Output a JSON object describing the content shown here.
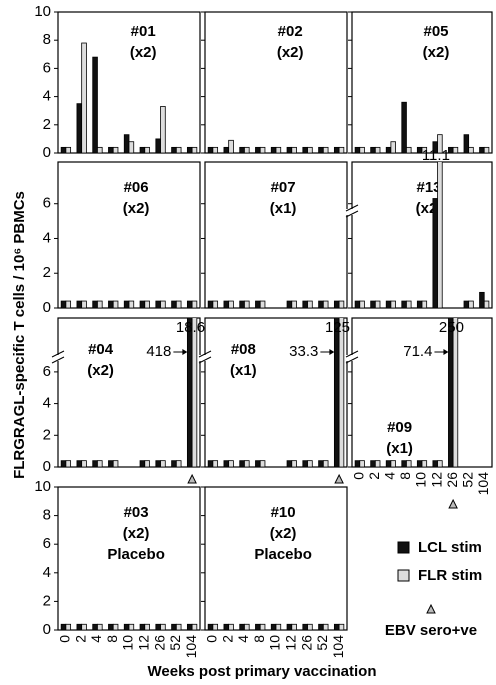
{
  "figure": {
    "y_label": "FLRGRAGL-specific T cells / 10⁶ PBMCs",
    "x_label": "Weeks post primary vaccination",
    "marker_label": "EBV sero+ve"
  },
  "chart_data": [
    {
      "type": "bar",
      "title": "#01",
      "subtitle": "(x2)",
      "categories": [
        0,
        2,
        4,
        8,
        10,
        12,
        26,
        52,
        104
      ],
      "ylim": [
        0,
        10
      ],
      "yticks": [
        0,
        2,
        4,
        6,
        8,
        10
      ],
      "series": [
        {
          "name": "LCL stim",
          "color": "#111111",
          "values": [
            0.4,
            3.5,
            6.8,
            0.4,
            1.3,
            0.4,
            1.0,
            0.4,
            0.4
          ]
        },
        {
          "name": "FLR stim",
          "color": "#dddddd",
          "values": [
            0.4,
            7.8,
            0.4,
            0.4,
            0.8,
            0.4,
            3.3,
            0.4,
            0.4
          ]
        }
      ]
    },
    {
      "type": "bar",
      "title": "#02",
      "subtitle": "(x2)",
      "categories": [
        0,
        2,
        4,
        8,
        10,
        12,
        26,
        52,
        104
      ],
      "ylim": [
        0,
        10
      ],
      "yticks": [
        0,
        2,
        4,
        6,
        8,
        10
      ],
      "series": [
        {
          "name": "LCL stim",
          "color": "#111111",
          "values": [
            0.4,
            0.4,
            0.4,
            0.4,
            0.4,
            0.4,
            0.4,
            0.4,
            0.4
          ]
        },
        {
          "name": "FLR stim",
          "color": "#dddddd",
          "values": [
            0.4,
            0.9,
            0.4,
            0.4,
            0.4,
            0.4,
            0.4,
            0.4,
            0.4
          ]
        }
      ]
    },
    {
      "type": "bar",
      "title": "#05",
      "subtitle": "(x2)",
      "categories": [
        0,
        2,
        4,
        8,
        10,
        12,
        26,
        52,
        104
      ],
      "ylim": [
        0,
        10
      ],
      "yticks": [
        0,
        2,
        4,
        6,
        8,
        10
      ],
      "series": [
        {
          "name": "LCL stim",
          "color": "#111111",
          "values": [
            0.4,
            0.4,
            0.4,
            3.6,
            0.4,
            0.8,
            0.4,
            1.3,
            0.4
          ]
        },
        {
          "name": "FLR stim",
          "color": "#dddddd",
          "values": [
            0.4,
            0.4,
            0.8,
            0.4,
            0.4,
            1.3,
            0.4,
            0.4,
            0.4
          ]
        }
      ]
    },
    {
      "type": "bar",
      "title": "#06",
      "subtitle": "(x2)",
      "categories": [
        0,
        2,
        4,
        8,
        10,
        12,
        26,
        52,
        104
      ],
      "ylim": [
        0,
        8.4
      ],
      "yticks": [
        0,
        2,
        4,
        6
      ],
      "series": [
        {
          "name": "LCL stim",
          "color": "#111111",
          "values": [
            0.4,
            0.4,
            0.4,
            0.4,
            0.4,
            0.4,
            0.4,
            0.4,
            0.4
          ]
        },
        {
          "name": "FLR stim",
          "color": "#dddddd",
          "values": [
            0.4,
            0.4,
            0.4,
            0.4,
            0.4,
            0.4,
            0.4,
            0.4,
            0.4
          ]
        }
      ]
    },
    {
      "type": "bar",
      "title": "#07",
      "subtitle": "(x1)",
      "categories": [
        0,
        2,
        4,
        8,
        10,
        12,
        26,
        52,
        104
      ],
      "ylim": [
        0,
        8.4
      ],
      "yticks": [
        0,
        2,
        4,
        6
      ],
      "series": [
        {
          "name": "LCL stim",
          "color": "#111111",
          "values": [
            0.4,
            0.4,
            0.4,
            0.4,
            null,
            0.4,
            0.4,
            0.4,
            0.4
          ]
        },
        {
          "name": "FLR stim",
          "color": "#dddddd",
          "values": [
            0.4,
            0.4,
            0.4,
            0.4,
            null,
            0.4,
            0.4,
            0.4,
            0.4
          ]
        }
      ]
    },
    {
      "type": "bar",
      "title": "#13",
      "subtitle": "(x2)",
      "categories": [
        0,
        2,
        4,
        8,
        10,
        12,
        26,
        52,
        104
      ],
      "ylim": [
        0,
        8.4
      ],
      "yticks": [
        0,
        2,
        4,
        6
      ],
      "axis_break": true,
      "series": [
        {
          "name": "LCL stim",
          "color": "#111111",
          "values": [
            0.4,
            0.4,
            0.4,
            0.4,
            0.4,
            6.3,
            null,
            0.4,
            0.9
          ]
        },
        {
          "name": "FLR stim",
          "color": "#dddddd",
          "values": [
            0.4,
            0.4,
            0.4,
            0.4,
            0.4,
            11.1,
            null,
            0.4,
            0.4
          ]
        }
      ]
    },
    {
      "type": "bar",
      "title": "#04",
      "subtitle": "(x2)",
      "categories": [
        0,
        2,
        4,
        8,
        10,
        12,
        26,
        52,
        104
      ],
      "ylim": [
        0,
        9.4
      ],
      "yticks": [
        0,
        2,
        4,
        6
      ],
      "axis_break": true,
      "sero_positive_week": 104,
      "series": [
        {
          "name": "LCL stim",
          "color": "#111111",
          "values": [
            0.4,
            0.4,
            0.4,
            0.4,
            null,
            0.4,
            0.4,
            0.4,
            418
          ]
        },
        {
          "name": "FLR stim",
          "color": "#dddddd",
          "values": [
            0.4,
            0.4,
            0.4,
            0.4,
            null,
            0.4,
            0.4,
            0.4,
            18.6
          ]
        }
      ]
    },
    {
      "type": "bar",
      "title": "#08",
      "subtitle": "(x1)",
      "categories": [
        0,
        2,
        4,
        8,
        10,
        12,
        26,
        52,
        104
      ],
      "ylim": [
        0,
        9.4
      ],
      "yticks": [
        0,
        2,
        4,
        6
      ],
      "axis_break": true,
      "sero_positive_week": 104,
      "series": [
        {
          "name": "LCL stim",
          "color": "#111111",
          "values": [
            0.4,
            0.4,
            0.4,
            0.4,
            null,
            0.4,
            0.4,
            0.4,
            33.3
          ]
        },
        {
          "name": "FLR stim",
          "color": "#dddddd",
          "values": [
            0.4,
            0.4,
            0.4,
            0.4,
            null,
            0.4,
            0.4,
            0.4,
            125
          ]
        }
      ]
    },
    {
      "type": "bar",
      "title": "#09",
      "subtitle": "(x1)",
      "categories": [
        0,
        2,
        4,
        8,
        10,
        12,
        26,
        52,
        104
      ],
      "ylim": [
        0,
        9.4
      ],
      "yticks": [
        0,
        2,
        4,
        6
      ],
      "axis_break": true,
      "sero_positive_week": 26,
      "series": [
        {
          "name": "LCL stim",
          "color": "#111111",
          "values": [
            0.4,
            0.4,
            0.4,
            0.4,
            0.4,
            0.4,
            71.4,
            null,
            null
          ]
        },
        {
          "name": "FLR stim",
          "color": "#dddddd",
          "values": [
            0.4,
            0.4,
            0.4,
            0.4,
            0.4,
            0.4,
            250,
            null,
            null
          ]
        }
      ]
    },
    {
      "type": "bar",
      "title": "#03",
      "subtitle": "(x2)",
      "note": "Placebo",
      "categories": [
        0,
        2,
        4,
        8,
        10,
        12,
        26,
        52,
        104
      ],
      "ylim": [
        0,
        10
      ],
      "yticks": [
        0,
        2,
        4,
        6,
        8,
        10
      ],
      "series": [
        {
          "name": "LCL stim",
          "color": "#111111",
          "values": [
            0.4,
            0.4,
            0.4,
            0.4,
            0.4,
            0.4,
            0.4,
            0.4,
            0.4
          ]
        },
        {
          "name": "FLR stim",
          "color": "#dddddd",
          "values": [
            0.4,
            0.4,
            0.4,
            0.4,
            0.4,
            0.4,
            0.4,
            0.4,
            0.4
          ]
        }
      ]
    },
    {
      "type": "bar",
      "title": "#10",
      "subtitle": "(x2)",
      "note": "Placebo",
      "categories": [
        0,
        2,
        4,
        8,
        10,
        12,
        26,
        52,
        104
      ],
      "ylim": [
        0,
        10
      ],
      "yticks": [
        0,
        2,
        4,
        6,
        8,
        10
      ],
      "series": [
        {
          "name": "LCL stim",
          "color": "#111111",
          "values": [
            0.4,
            0.4,
            0.4,
            0.4,
            0.4,
            0.4,
            0.4,
            0.4,
            0.4
          ]
        },
        {
          "name": "FLR stim",
          "color": "#dddddd",
          "values": [
            0.4,
            0.4,
            0.4,
            0.4,
            0.4,
            0.4,
            0.4,
            0.4,
            0.4
          ]
        }
      ]
    }
  ]
}
